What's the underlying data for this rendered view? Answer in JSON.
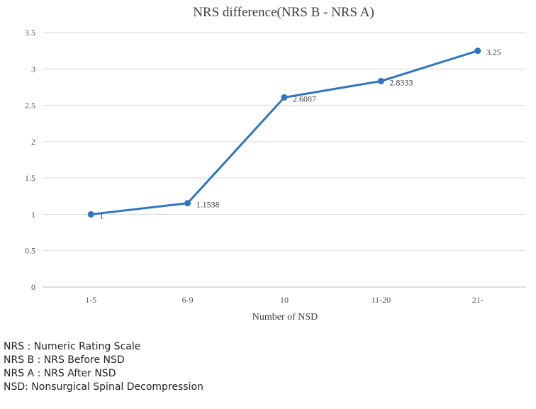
{
  "chart_data": {
    "type": "line",
    "title": "NRS difference(NRS B - NRS A)",
    "xlabel": "Number of NSD",
    "ylabel": "",
    "categories": [
      "1-5",
      "6-9",
      "10",
      "11-20",
      "21-"
    ],
    "series": [
      {
        "values": [
          1,
          1.1538,
          2.6087,
          2.8333,
          3.25
        ],
        "color": "#2e75c4"
      }
    ],
    "data_labels": [
      "1",
      "1.1538",
      "2.6087",
      "2.8333",
      "3.25"
    ],
    "ylim": [
      0,
      3.5
    ],
    "yticks": [
      "0",
      "0.5",
      "1",
      "1.5",
      "2",
      "2.5",
      "3",
      "3.5"
    ],
    "grid": true,
    "legend": "none"
  },
  "notes": [
    "NRS : Numeric Rating Scale",
    "NRS B : NRS Before NSD",
    "NRS A : NRS After NSD",
    "NSD: Nonsurgical Spinal Decompression"
  ]
}
